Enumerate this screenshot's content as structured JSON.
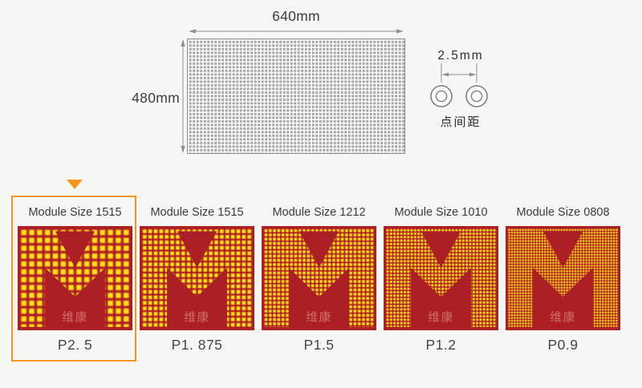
{
  "page": {
    "background_color": "#f6f6f5",
    "accent_color": "#f7941e"
  },
  "panel_diagram": {
    "width_label": "640mm",
    "height_label": "480mm"
  },
  "pitch_diagram": {
    "pitch_label": "2.5mm",
    "caption": "点间距"
  },
  "module_colors": {
    "board_red": "#ab1f25",
    "dot_yellow": "#f9e414",
    "dot_halo": "#dd7f1c",
    "watermark_color": "#d98a80"
  },
  "modules": [
    {
      "size_label": "Module Size 1515",
      "pitch_label": "P2. 5",
      "watermark": "维康",
      "selected": true,
      "dots_per_row": 14
    },
    {
      "size_label": "Module Size 1515",
      "pitch_label": "P1. 875",
      "watermark": "维康",
      "selected": false,
      "dots_per_row": 20
    },
    {
      "size_label": "Module Size 1212",
      "pitch_label": "P1.5",
      "watermark": "维康",
      "selected": false,
      "dots_per_row": 26
    },
    {
      "size_label": "Module Size 1010",
      "pitch_label": "P1.2",
      "watermark": "维康",
      "selected": false,
      "dots_per_row": 32
    },
    {
      "size_label": "Module Size 0808",
      "pitch_label": "P0.9",
      "watermark": "维康",
      "selected": false,
      "dots_per_row": 40
    }
  ]
}
